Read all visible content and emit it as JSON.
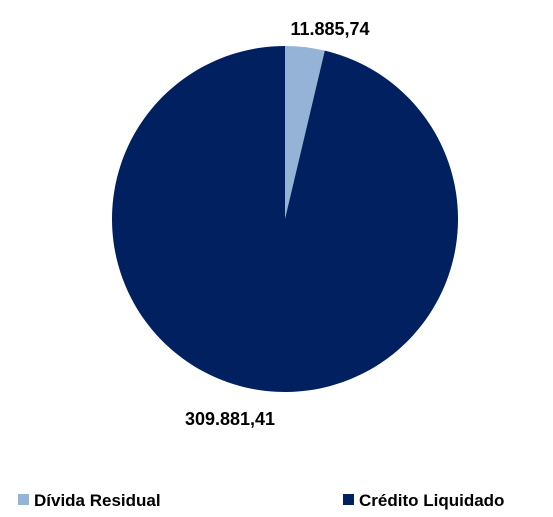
{
  "chart_data": {
    "type": "pie",
    "title": "",
    "categories": [
      "Dívida Residual",
      "Crédito Liquidado"
    ],
    "values": [
      11885.74,
      309881.41
    ],
    "data_labels": [
      "11.885,74",
      "309.881,41"
    ],
    "colors": [
      "#95B3D7",
      "#002060"
    ],
    "legend_position": "bottom",
    "start_angle": "12 o'clock",
    "direction": "clockwise"
  }
}
